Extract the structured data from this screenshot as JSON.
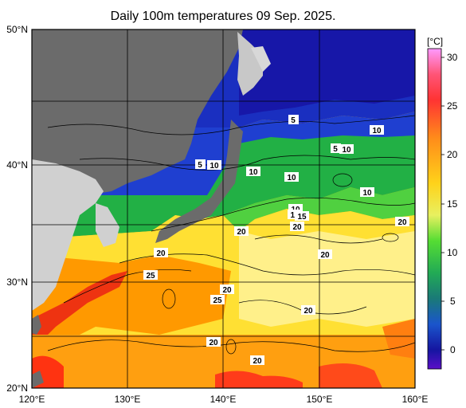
{
  "title": "Daily 100m temperatures 09 Sep. 2025.",
  "lat_labels": [
    "50°N",
    "40°N",
    "30°N",
    "20°N"
  ],
  "lon_labels": [
    "120°E",
    "130°E",
    "140°E",
    "150°E",
    "160°E"
  ],
  "colorbar": {
    "unit": "[°C]",
    "ticks": [
      "30",
      "25",
      "20",
      "15",
      "10",
      "5",
      "0"
    ],
    "colors": [
      "#ff99ff",
      "#ff3333",
      "#ff8c1a",
      "#ffd21a",
      "#e8f060",
      "#55dd33",
      "#22aa55",
      "#1a7a77",
      "#1a55cc",
      "#1515a0",
      "#5a0fc8"
    ]
  },
  "contour_labels": [
    "5",
    "5",
    "10",
    "5",
    "10",
    "10",
    "10",
    "10",
    "10",
    "10",
    "10",
    "15",
    "20",
    "20",
    "20",
    "20",
    "25",
    "20",
    "25",
    "20",
    "20",
    "20",
    "20"
  ],
  "colors": {
    "land": "#d0d0d0",
    "land_dark": "#707070",
    "ice": "#d8d8d8"
  }
}
